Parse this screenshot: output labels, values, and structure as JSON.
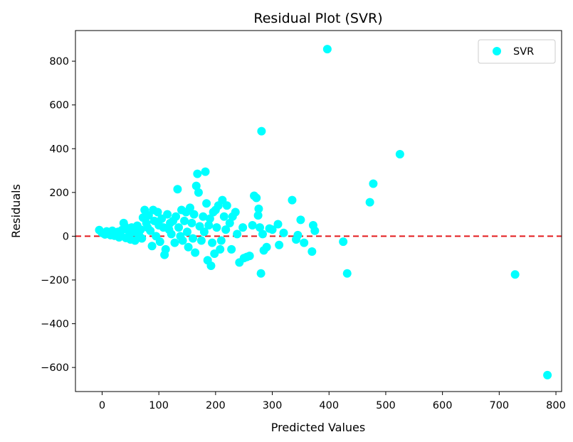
{
  "chart_data": {
    "type": "scatter",
    "title": "Residual Plot (SVR)",
    "xlabel": "Predicted Values",
    "ylabel": "Residuals",
    "xlim": [
      -47,
      810
    ],
    "ylim": [
      -710,
      940
    ],
    "xticks": [
      0,
      100,
      200,
      300,
      400,
      500,
      600,
      700,
      800
    ],
    "yticks": [
      -600,
      -400,
      -200,
      0,
      200,
      400,
      600,
      800
    ],
    "ytick_labels": [
      "−600",
      "−400",
      "−200",
      "0",
      "200",
      "400",
      "600",
      "800"
    ],
    "grid": false,
    "legend": "top-right",
    "reference_line": {
      "y": 0,
      "color": "#e31a1c",
      "style": "dashed"
    },
    "series": [
      {
        "name": "SVR",
        "color": "#00ffff",
        "points": [
          [
            -5,
            28
          ],
          [
            0,
            15
          ],
          [
            5,
            8
          ],
          [
            8,
            22
          ],
          [
            12,
            18
          ],
          [
            15,
            5
          ],
          [
            18,
            25
          ],
          [
            20,
            12
          ],
          [
            22,
            2
          ],
          [
            25,
            15
          ],
          [
            28,
            20
          ],
          [
            30,
            -5
          ],
          [
            32,
            10
          ],
          [
            35,
            28
          ],
          [
            38,
            60
          ],
          [
            40,
            45
          ],
          [
            42,
            -8
          ],
          [
            45,
            30
          ],
          [
            48,
            15
          ],
          [
            50,
            -15
          ],
          [
            52,
            40
          ],
          [
            55,
            20
          ],
          [
            58,
            -20
          ],
          [
            60,
            25
          ],
          [
            62,
            48
          ],
          [
            65,
            5
          ],
          [
            68,
            30
          ],
          [
            70,
            -10
          ],
          [
            72,
            85
          ],
          [
            75,
            120
          ],
          [
            78,
            60
          ],
          [
            80,
            40
          ],
          [
            82,
            95
          ],
          [
            85,
            25
          ],
          [
            88,
            -45
          ],
          [
            90,
            120
          ],
          [
            92,
            70
          ],
          [
            95,
            0
          ],
          [
            98,
            110
          ],
          [
            100,
            50
          ],
          [
            102,
            -25
          ],
          [
            105,
            80
          ],
          [
            108,
            40
          ],
          [
            110,
            -85
          ],
          [
            112,
            -60
          ],
          [
            115,
            100
          ],
          [
            118,
            30
          ],
          [
            120,
            60
          ],
          [
            122,
            10
          ],
          [
            125,
            70
          ],
          [
            128,
            -30
          ],
          [
            130,
            90
          ],
          [
            133,
            215
          ],
          [
            135,
            40
          ],
          [
            138,
            0
          ],
          [
            140,
            120
          ],
          [
            142,
            -20
          ],
          [
            145,
            70
          ],
          [
            148,
            110
          ],
          [
            150,
            20
          ],
          [
            152,
            -50
          ],
          [
            155,
            130
          ],
          [
            158,
            60
          ],
          [
            160,
            -10
          ],
          [
            162,
            100
          ],
          [
            164,
            -75
          ],
          [
            166,
            230
          ],
          [
            168,
            285
          ],
          [
            170,
            200
          ],
          [
            172,
            45
          ],
          [
            175,
            -20
          ],
          [
            178,
            90
          ],
          [
            180,
            20
          ],
          [
            182,
            295
          ],
          [
            184,
            150
          ],
          [
            186,
            -110
          ],
          [
            188,
            50
          ],
          [
            190,
            80
          ],
          [
            192,
            -135
          ],
          [
            194,
            -30
          ],
          [
            196,
            110
          ],
          [
            198,
            -80
          ],
          [
            200,
            120
          ],
          [
            202,
            40
          ],
          [
            205,
            140
          ],
          [
            208,
            -60
          ],
          [
            210,
            -20
          ],
          [
            212,
            165
          ],
          [
            215,
            90
          ],
          [
            218,
            30
          ],
          [
            220,
            140
          ],
          [
            225,
            60
          ],
          [
            228,
            -60
          ],
          [
            230,
            90
          ],
          [
            235,
            110
          ],
          [
            238,
            10
          ],
          [
            242,
            -120
          ],
          [
            248,
            40
          ],
          [
            250,
            -100
          ],
          [
            255,
            -95
          ],
          [
            260,
            -90
          ],
          [
            265,
            50
          ],
          [
            268,
            185
          ],
          [
            272,
            175
          ],
          [
            275,
            95
          ],
          [
            276,
            125
          ],
          [
            278,
            40
          ],
          [
            280,
            -170
          ],
          [
            281,
            480
          ],
          [
            283,
            10
          ],
          [
            285,
            -65
          ],
          [
            290,
            -50
          ],
          [
            295,
            35
          ],
          [
            300,
            30
          ],
          [
            310,
            55
          ],
          [
            312,
            -40
          ],
          [
            320,
            15
          ],
          [
            335,
            165
          ],
          [
            342,
            -15
          ],
          [
            345,
            5
          ],
          [
            350,
            75
          ],
          [
            356,
            -30
          ],
          [
            370,
            -70
          ],
          [
            372,
            50
          ],
          [
            375,
            25
          ],
          [
            397,
            855
          ],
          [
            425,
            -25
          ],
          [
            432,
            -170
          ],
          [
            472,
            155
          ],
          [
            478,
            240
          ],
          [
            525,
            375
          ],
          [
            728,
            -175
          ],
          [
            785,
            -635
          ]
        ]
      }
    ]
  }
}
